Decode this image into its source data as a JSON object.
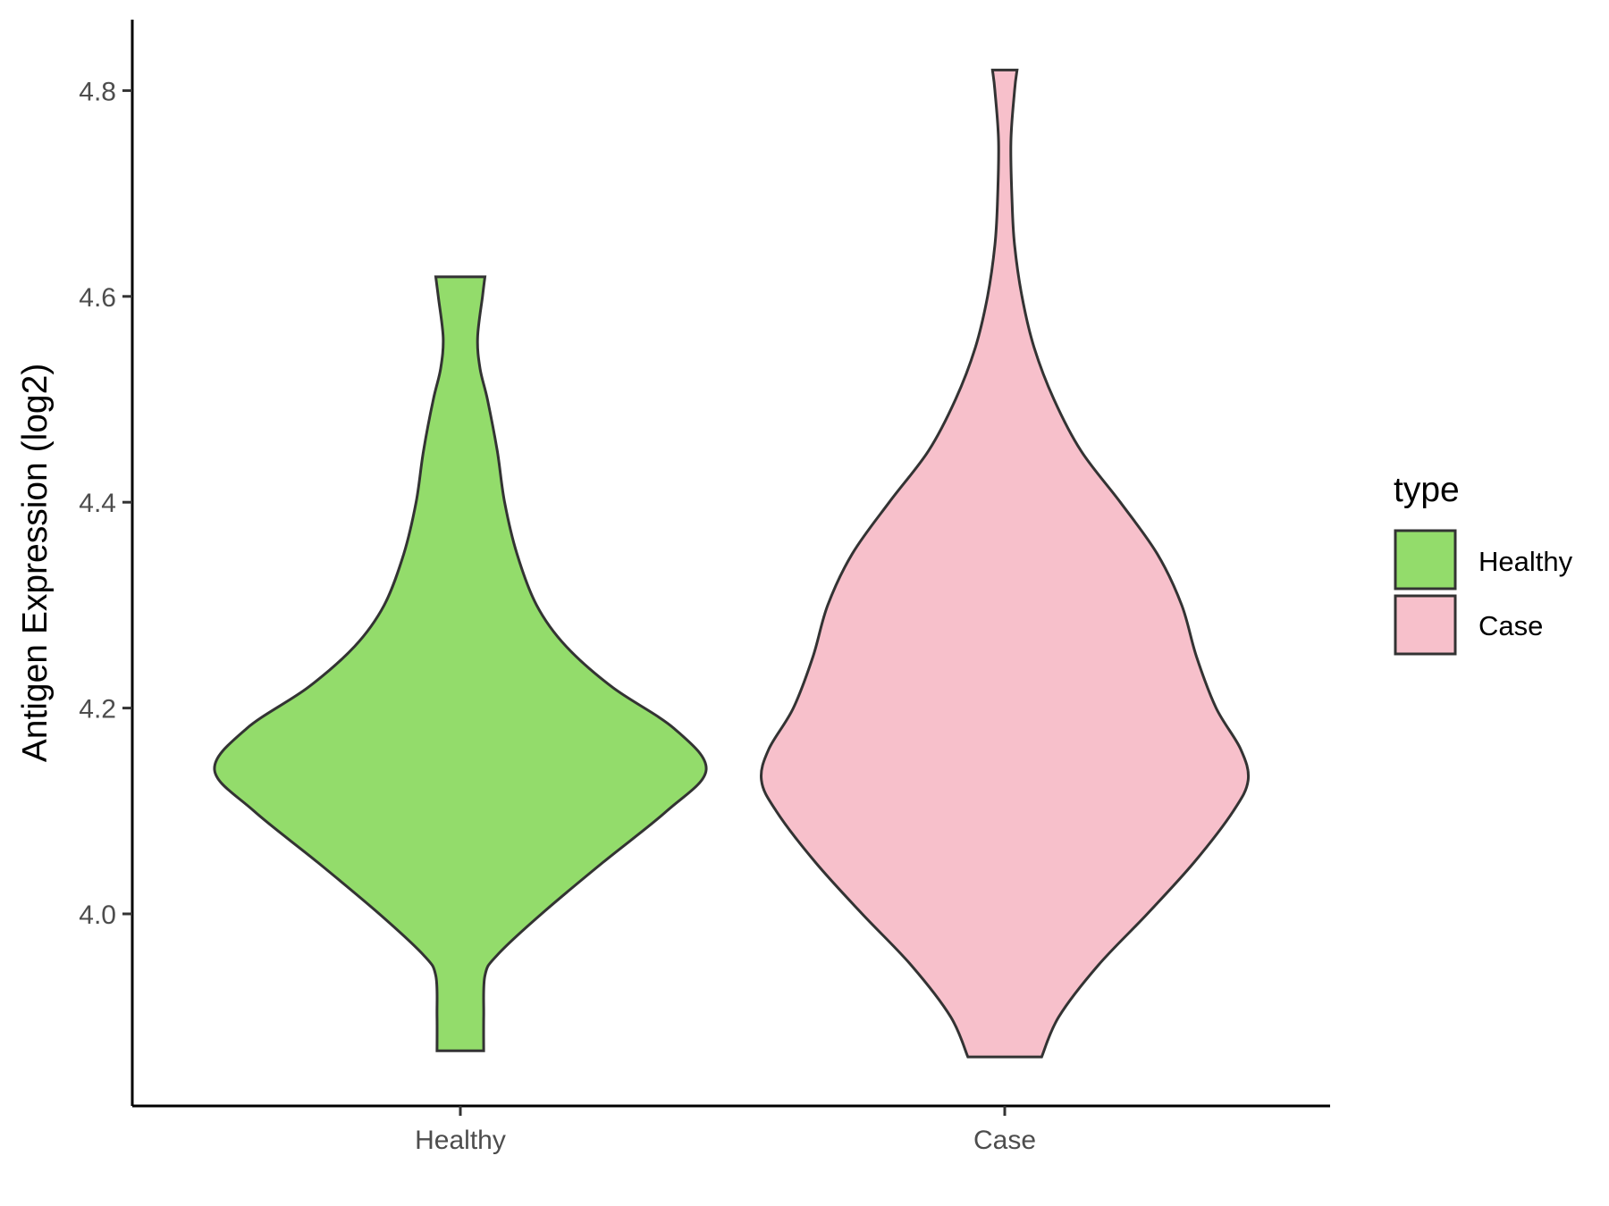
{
  "chart_data": {
    "type": "violin",
    "title": "",
    "xlabel": "",
    "ylabel": "Antigen Expression (log2)",
    "categories": [
      "Healthy",
      "Case"
    ],
    "y_ticks": [
      "4.0",
      "4.2",
      "4.4",
      "4.6",
      "4.8"
    ],
    "ylim": [
      3.83,
      4.87
    ],
    "grid": false,
    "legend": {
      "title": "type",
      "position": "right",
      "entries": [
        {
          "label": "Healthy",
          "color": "#93dc6b"
        },
        {
          "label": "Case",
          "color": "#f7c0cb"
        }
      ]
    },
    "series": [
      {
        "category": "Healthy",
        "color": "#93dc6b",
        "min": 3.867,
        "max": 4.619,
        "density_profile": [
          [
            3.867,
            0.095
          ],
          [
            3.9,
            0.095
          ],
          [
            3.94,
            0.1
          ],
          [
            3.96,
            0.15
          ],
          [
            4.0,
            0.33
          ],
          [
            4.05,
            0.58
          ],
          [
            4.1,
            0.84
          ],
          [
            4.14,
            1.0
          ],
          [
            4.18,
            0.87
          ],
          [
            4.22,
            0.62
          ],
          [
            4.26,
            0.43
          ],
          [
            4.3,
            0.31
          ],
          [
            4.35,
            0.23
          ],
          [
            4.4,
            0.18
          ],
          [
            4.45,
            0.15
          ],
          [
            4.5,
            0.11
          ],
          [
            4.53,
            0.08
          ],
          [
            4.56,
            0.07
          ],
          [
            4.6,
            0.09
          ],
          [
            4.619,
            0.1
          ]
        ]
      },
      {
        "category": "Case",
        "color": "#f7c0cb",
        "min": 3.861,
        "max": 4.82,
        "density_profile": [
          [
            3.861,
            0.15
          ],
          [
            3.9,
            0.22
          ],
          [
            3.95,
            0.38
          ],
          [
            4.0,
            0.58
          ],
          [
            4.05,
            0.77
          ],
          [
            4.1,
            0.93
          ],
          [
            4.13,
            0.99
          ],
          [
            4.16,
            0.96
          ],
          [
            4.2,
            0.86
          ],
          [
            4.25,
            0.78
          ],
          [
            4.3,
            0.72
          ],
          [
            4.35,
            0.62
          ],
          [
            4.4,
            0.47
          ],
          [
            4.45,
            0.31
          ],
          [
            4.5,
            0.2
          ],
          [
            4.55,
            0.12
          ],
          [
            4.6,
            0.07
          ],
          [
            4.65,
            0.04
          ],
          [
            4.69,
            0.03
          ],
          [
            4.75,
            0.025
          ],
          [
            4.8,
            0.04
          ],
          [
            4.82,
            0.05
          ]
        ]
      }
    ]
  }
}
